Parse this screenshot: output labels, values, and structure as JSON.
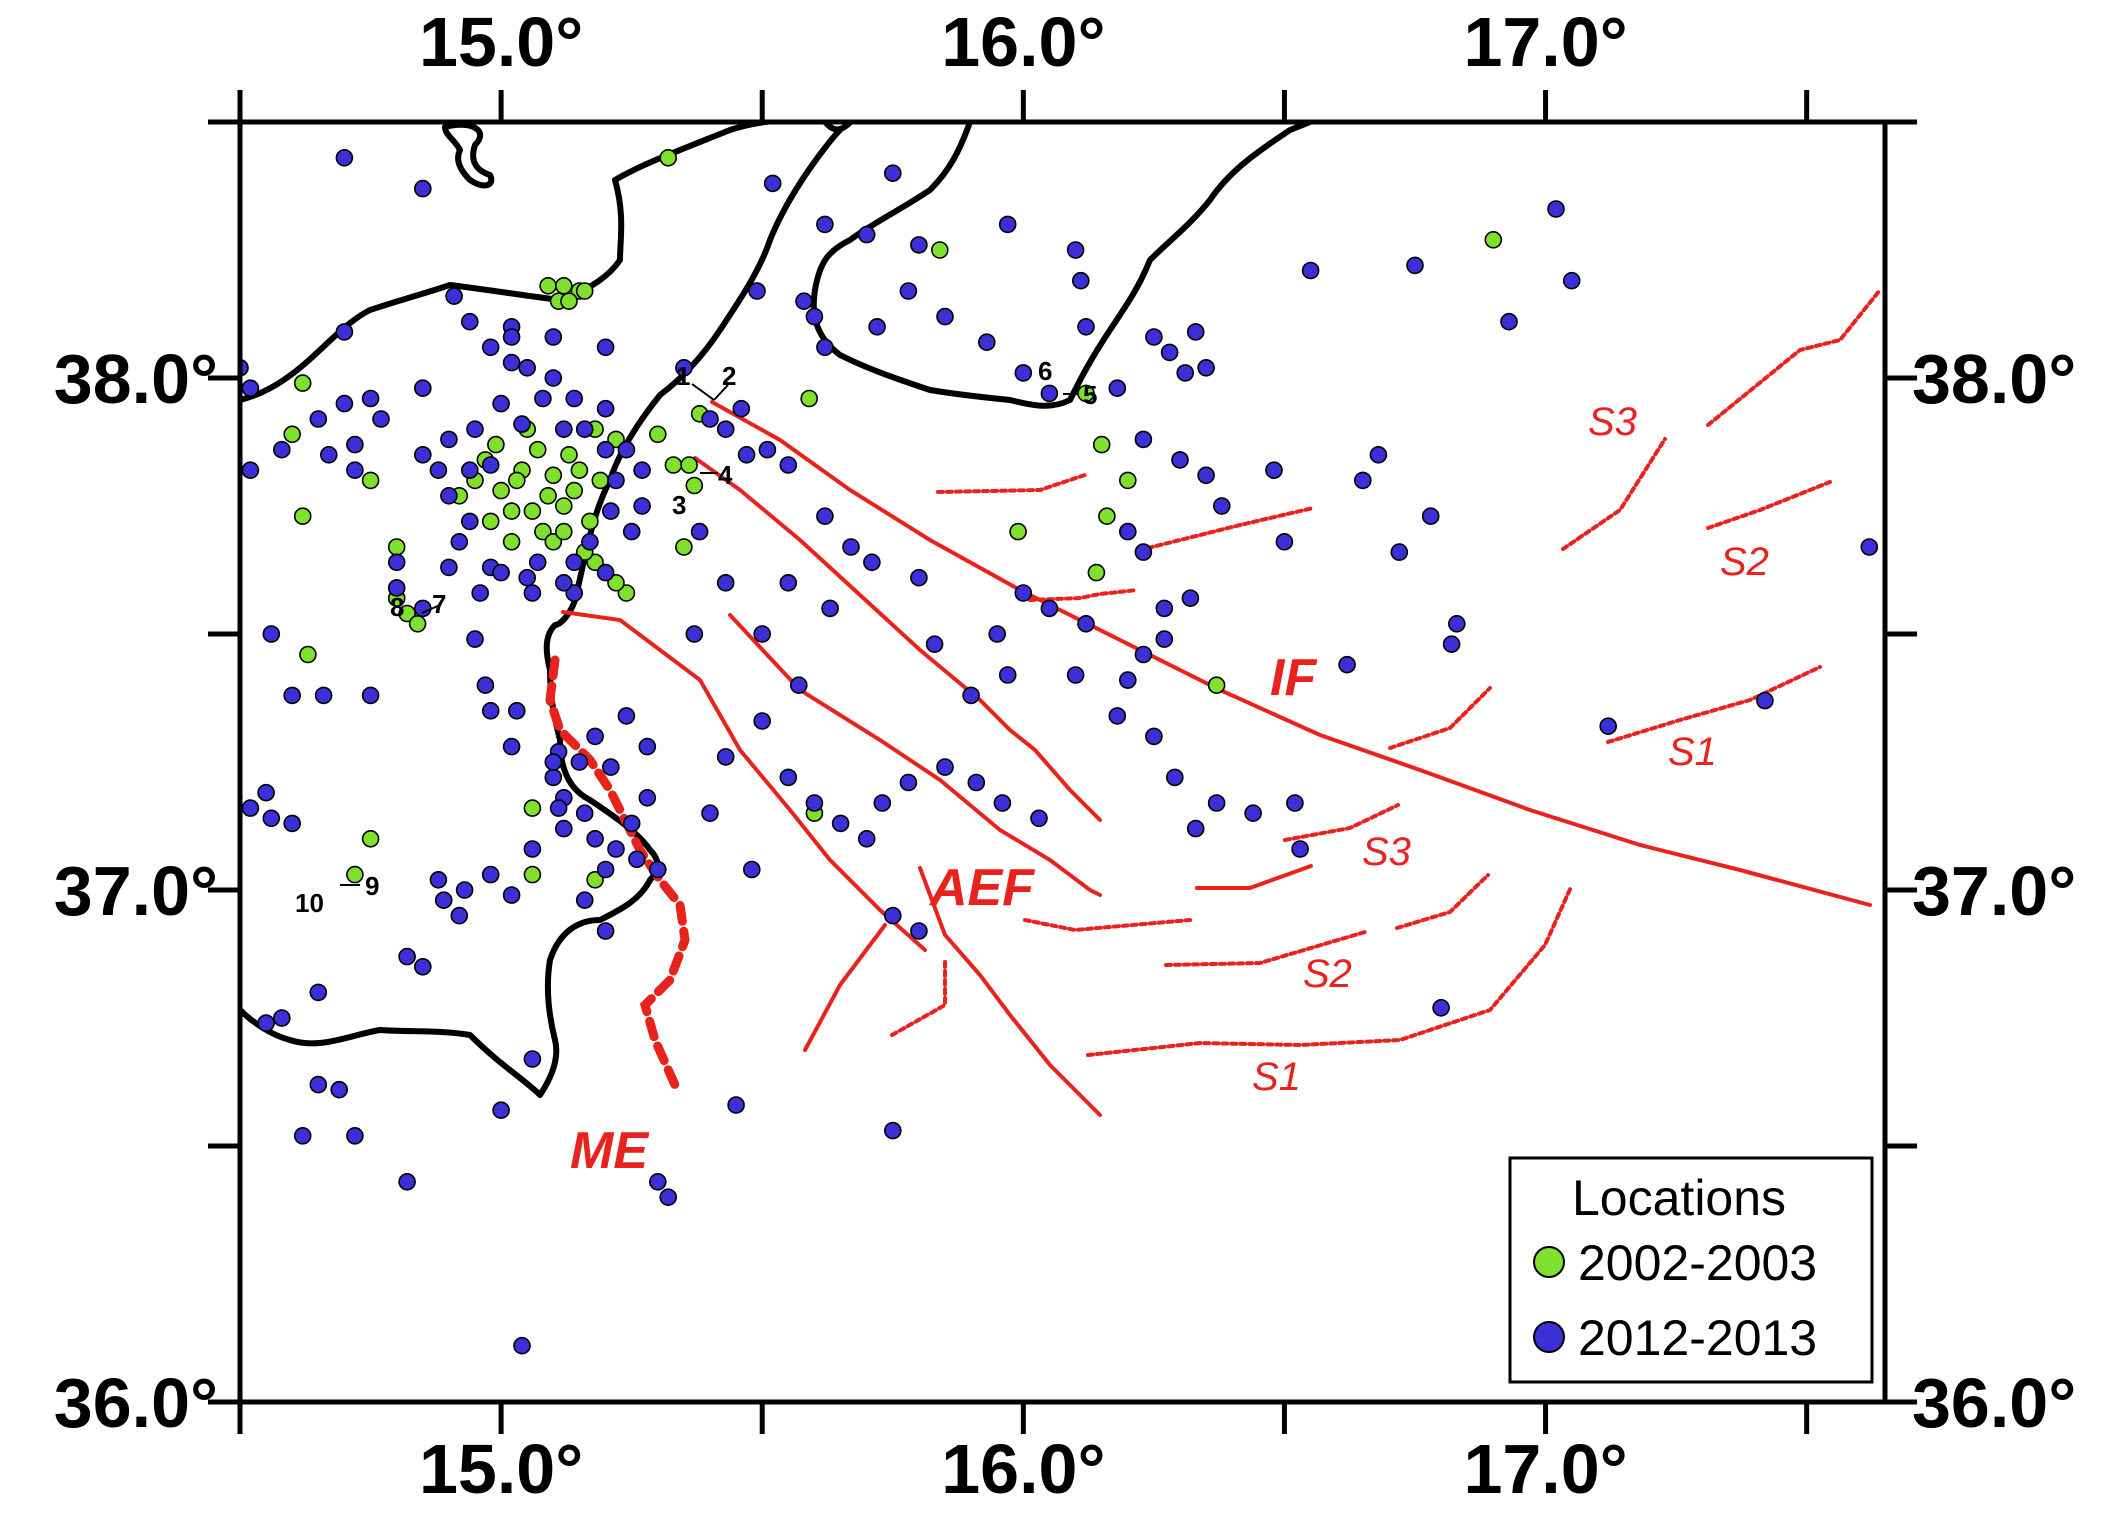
{
  "map": {
    "lon_range": [
      14.5,
      17.65
    ],
    "lat_range": [
      36.0,
      38.5
    ],
    "x_ticks": [
      {
        "value": 15.0,
        "label": "15.0°"
      },
      {
        "value": 16.0,
        "label": "16.0°"
      },
      {
        "value": 17.0,
        "label": "17.0°"
      }
    ],
    "y_ticks": [
      {
        "value": 38.0,
        "label": "38.0°"
      },
      {
        "value": 37.0,
        "label": "37.0°"
      },
      {
        "value": 36.0,
        "label": "36.0°"
      }
    ],
    "minor_x_ticks": [
      14.5,
      15.5,
      16.5,
      17.5
    ],
    "minor_y_ticks": [
      37.5,
      36.5,
      38.5
    ]
  },
  "colors": {
    "green": "#7fe02e",
    "blue": "#3b2fd6",
    "fault": "#e8221d",
    "coast": "#000000"
  },
  "labels": {
    "faults": {
      "IF": "IF",
      "AEF": "AEF",
      "ME": "ME"
    },
    "segments": [
      "S3",
      "S2",
      "S1",
      "S3",
      "S2",
      "S1"
    ],
    "stations": [
      "1",
      "2",
      "3",
      "4",
      "5",
      "6",
      "7",
      "8",
      "9",
      "10"
    ]
  },
  "legend": {
    "title": "Locations",
    "entries": [
      {
        "label": "2002-2003",
        "color": "#7fe02e"
      },
      {
        "label": "2012-2013",
        "color": "#3b2fd6"
      }
    ]
  },
  "events": {
    "green": [
      [
        15.32,
        38.43
      ],
      [
        15.09,
        38.18
      ],
      [
        15.12,
        38.18
      ],
      [
        15.15,
        38.17
      ],
      [
        15.11,
        38.15
      ],
      [
        15.13,
        38.15
      ],
      [
        15.16,
        38.17
      ],
      [
        14.62,
        37.99
      ],
      [
        14.6,
        37.89
      ],
      [
        14.62,
        37.73
      ],
      [
        14.75,
        37.8
      ],
      [
        14.8,
        37.67
      ],
      [
        15.05,
        37.9
      ],
      [
        15.18,
        37.9
      ],
      [
        15.22,
        37.88
      ],
      [
        15.3,
        37.89
      ],
      [
        15.38,
        37.93
      ],
      [
        15.33,
        37.83
      ],
      [
        15.36,
        37.83
      ],
      [
        15.37,
        37.79
      ],
      [
        15.35,
        37.67
      ],
      [
        15.24,
        37.58
      ],
      [
        15.59,
        37.96
      ],
      [
        15.84,
        38.25
      ],
      [
        16.12,
        37.97
      ],
      [
        16.15,
        37.87
      ],
      [
        16.2,
        37.8
      ],
      [
        16.16,
        37.73
      ],
      [
        15.99,
        37.7
      ],
      [
        16.14,
        37.62
      ],
      [
        16.37,
        37.4
      ],
      [
        16.9,
        38.27
      ],
      [
        15.6,
        37.15
      ],
      [
        14.75,
        37.1
      ],
      [
        14.82,
        37.54
      ],
      [
        14.84,
        37.52
      ],
      [
        14.72,
        37.03
      ],
      [
        14.63,
        37.46
      ],
      [
        14.8,
        37.57
      ],
      [
        15.06,
        37.16
      ],
      [
        15.06,
        37.03
      ],
      [
        15.18,
        37.02
      ],
      [
        15.22,
        37.6
      ],
      [
        15.18,
        37.64
      ],
      [
        14.92,
        37.77
      ],
      [
        14.98,
        37.72
      ],
      [
        15.02,
        37.68
      ],
      [
        15.08,
        37.7
      ],
      [
        15.12,
        37.75
      ],
      [
        15.15,
        37.82
      ],
      [
        15.04,
        37.82
      ],
      [
        14.97,
        37.84
      ],
      [
        15.0,
        37.78
      ],
      [
        15.06,
        37.74
      ],
      [
        15.1,
        37.81
      ],
      [
        15.14,
        37.78
      ],
      [
        15.17,
        37.72
      ],
      [
        15.19,
        37.8
      ],
      [
        15.13,
        37.85
      ],
      [
        15.07,
        37.86
      ],
      [
        15.02,
        37.74
      ],
      [
        14.95,
        37.8
      ],
      [
        15.1,
        37.68
      ],
      [
        15.16,
        37.66
      ],
      [
        14.99,
        37.87
      ],
      [
        15.09,
        37.77
      ],
      [
        15.03,
        37.8
      ],
      [
        15.12,
        37.7
      ]
    ],
    "blue": [
      [
        14.7,
        38.43
      ],
      [
        14.85,
        38.37
      ],
      [
        15.52,
        38.38
      ],
      [
        15.75,
        38.4
      ],
      [
        15.97,
        38.3
      ],
      [
        15.62,
        38.3
      ],
      [
        15.7,
        38.28
      ],
      [
        15.8,
        38.26
      ],
      [
        16.1,
        38.25
      ],
      [
        16.11,
        38.19
      ],
      [
        16.55,
        38.21
      ],
      [
        16.75,
        38.22
      ],
      [
        16.93,
        38.11
      ],
      [
        17.02,
        38.33
      ],
      [
        17.05,
        38.19
      ],
      [
        14.5,
        38.02
      ],
      [
        14.52,
        37.98
      ],
      [
        14.58,
        37.86
      ],
      [
        14.65,
        37.92
      ],
      [
        14.7,
        37.95
      ],
      [
        14.72,
        37.87
      ],
      [
        14.7,
        38.09
      ],
      [
        14.77,
        37.92
      ],
      [
        14.85,
        37.85
      ],
      [
        14.91,
        38.16
      ],
      [
        14.94,
        38.11
      ],
      [
        15.02,
        38.1
      ],
      [
        15.1,
        38.08
      ],
      [
        15.2,
        38.06
      ],
      [
        15.35,
        38.02
      ],
      [
        15.49,
        38.17
      ],
      [
        15.58,
        38.15
      ],
      [
        15.6,
        38.12
      ],
      [
        15.62,
        38.06
      ],
      [
        15.72,
        38.1
      ],
      [
        15.78,
        38.17
      ],
      [
        15.85,
        38.12
      ],
      [
        15.93,
        38.07
      ],
      [
        16.0,
        38.01
      ],
      [
        16.05,
        37.97
      ],
      [
        16.12,
        38.1
      ],
      [
        16.25,
        38.08
      ],
      [
        16.28,
        38.05
      ],
      [
        16.31,
        38.01
      ],
      [
        16.33,
        38.09
      ],
      [
        16.35,
        38.02
      ],
      [
        16.18,
        37.98
      ],
      [
        16.23,
        37.88
      ],
      [
        16.3,
        37.84
      ],
      [
        16.35,
        37.81
      ],
      [
        16.38,
        37.75
      ],
      [
        16.48,
        37.82
      ],
      [
        16.65,
        37.8
      ],
      [
        16.68,
        37.85
      ],
      [
        16.5,
        37.68
      ],
      [
        16.72,
        37.66
      ],
      [
        16.78,
        37.73
      ],
      [
        16.83,
        37.52
      ],
      [
        16.62,
        37.44
      ],
      [
        16.82,
        37.48
      ],
      [
        16.27,
        37.55
      ],
      [
        16.27,
        37.49
      ],
      [
        16.23,
        37.46
      ],
      [
        16.2,
        37.41
      ],
      [
        16.18,
        37.34
      ],
      [
        16.25,
        37.3
      ],
      [
        16.29,
        37.22
      ],
      [
        16.37,
        37.17
      ],
      [
        16.44,
        37.15
      ],
      [
        16.52,
        37.17
      ],
      [
        16.33,
        37.12
      ],
      [
        16.53,
        37.08
      ],
      [
        16.8,
        36.77
      ],
      [
        17.12,
        37.32
      ],
      [
        17.42,
        37.37
      ],
      [
        17.62,
        37.67
      ],
      [
        15.4,
        37.92
      ],
      [
        15.43,
        37.9
      ],
      [
        15.46,
        37.94
      ],
      [
        15.51,
        37.86
      ],
      [
        15.55,
        37.83
      ],
      [
        15.62,
        37.73
      ],
      [
        15.67,
        37.67
      ],
      [
        15.71,
        37.64
      ],
      [
        15.8,
        37.61
      ],
      [
        15.83,
        37.48
      ],
      [
        15.9,
        37.38
      ],
      [
        15.97,
        37.42
      ],
      [
        15.95,
        37.5
      ],
      [
        16.0,
        37.58
      ],
      [
        16.05,
        37.55
      ],
      [
        16.12,
        37.52
      ],
      [
        15.57,
        37.4
      ],
      [
        15.5,
        37.33
      ],
      [
        15.55,
        37.22
      ],
      [
        15.6,
        37.17
      ],
      [
        15.65,
        37.13
      ],
      [
        15.7,
        37.1
      ],
      [
        15.73,
        37.17
      ],
      [
        15.78,
        37.21
      ],
      [
        15.85,
        37.24
      ],
      [
        15.91,
        37.21
      ],
      [
        15.96,
        37.17
      ],
      [
        16.03,
        37.14
      ],
      [
        15.75,
        36.95
      ],
      [
        15.8,
        36.92
      ],
      [
        15.43,
        37.26
      ],
      [
        15.4,
        37.15
      ],
      [
        15.48,
        37.04
      ],
      [
        15.45,
        36.58
      ],
      [
        15.75,
        36.53
      ],
      [
        15.3,
        36.43
      ],
      [
        15.32,
        36.4
      ],
      [
        14.82,
        36.43
      ],
      [
        15.04,
        36.11
      ],
      [
        15.02,
        36.99
      ],
      [
        14.92,
        36.95
      ],
      [
        14.82,
        36.87
      ],
      [
        14.65,
        36.8
      ],
      [
        14.58,
        36.75
      ],
      [
        14.55,
        36.74
      ],
      [
        14.65,
        36.62
      ],
      [
        14.69,
        36.61
      ],
      [
        14.72,
        36.52
      ],
      [
        14.62,
        36.52
      ],
      [
        15.0,
        36.57
      ],
      [
        15.06,
        36.67
      ],
      [
        14.55,
        37.19
      ],
      [
        14.52,
        37.16
      ],
      [
        14.56,
        37.14
      ],
      [
        14.6,
        37.13
      ],
      [
        14.6,
        37.38
      ],
      [
        14.66,
        37.38
      ],
      [
        14.75,
        37.38
      ],
      [
        14.56,
        37.5
      ],
      [
        14.85,
        37.55
      ],
      [
        14.8,
        37.59
      ],
      [
        14.8,
        37.64
      ],
      [
        14.92,
        37.68
      ],
      [
        14.95,
        37.49
      ],
      [
        14.97,
        37.4
      ],
      [
        14.98,
        37.35
      ],
      [
        15.02,
        37.28
      ],
      [
        15.11,
        37.27
      ],
      [
        15.15,
        37.25
      ],
      [
        15.1,
        37.22
      ],
      [
        15.12,
        37.18
      ],
      [
        15.16,
        37.15
      ],
      [
        15.12,
        37.12
      ],
      [
        15.18,
        37.1
      ],
      [
        15.22,
        37.08
      ],
      [
        15.25,
        37.13
      ],
      [
        15.28,
        37.18
      ],
      [
        15.26,
        37.06
      ],
      [
        15.3,
        37.04
      ],
      [
        15.2,
        37.04
      ],
      [
        15.16,
        36.98
      ],
      [
        15.2,
        36.92
      ],
      [
        15.1,
        37.25
      ],
      [
        15.18,
        37.3
      ],
      [
        15.24,
        37.34
      ],
      [
        15.28,
        37.28
      ],
      [
        14.88,
        37.02
      ],
      [
        14.93,
        37.0
      ],
      [
        14.98,
        37.03
      ],
      [
        14.89,
        36.98
      ],
      [
        15.06,
        37.08
      ],
      [
        14.85,
        36.85
      ],
      [
        15.21,
        37.24
      ],
      [
        15.11,
        37.16
      ],
      [
        15.03,
        37.35
      ],
      [
        14.96,
        37.58
      ],
      [
        14.9,
        37.63
      ],
      [
        15.2,
        37.62
      ],
      [
        15.14,
        37.58
      ],
      [
        15.05,
        37.61
      ],
      [
        14.98,
        37.63
      ],
      [
        15.25,
        37.7
      ],
      [
        15.27,
        37.75
      ],
      [
        15.27,
        37.82
      ],
      [
        15.24,
        37.86
      ],
      [
        15.2,
        37.94
      ],
      [
        15.14,
        37.96
      ],
      [
        15.08,
        37.96
      ],
      [
        15.0,
        37.95
      ],
      [
        14.95,
        37.9
      ],
      [
        14.9,
        37.88
      ],
      [
        14.88,
        37.82
      ],
      [
        14.9,
        37.77
      ],
      [
        14.94,
        37.72
      ],
      [
        15.0,
        37.62
      ],
      [
        15.06,
        37.58
      ],
      [
        15.12,
        37.6
      ],
      [
        15.17,
        37.68
      ],
      [
        15.21,
        37.74
      ],
      [
        15.22,
        37.8
      ],
      [
        15.2,
        37.86
      ],
      [
        15.12,
        37.9
      ],
      [
        15.04,
        37.91
      ],
      [
        14.98,
        37.83
      ],
      [
        14.94,
        37.82
      ],
      [
        15.07,
        37.64
      ],
      [
        15.14,
        37.64
      ],
      [
        15.16,
        37.9
      ],
      [
        14.75,
        37.96
      ],
      [
        14.85,
        37.98
      ],
      [
        14.67,
        37.85
      ],
      [
        14.72,
        37.82
      ],
      [
        14.52,
        37.82
      ],
      [
        15.02,
        38.08
      ],
      [
        15.05,
        38.02
      ],
      [
        15.1,
        38.0
      ],
      [
        15.02,
        38.03
      ],
      [
        14.98,
        38.06
      ],
      [
        15.47,
        37.85
      ],
      [
        15.38,
        37.7
      ],
      [
        15.43,
        37.6
      ],
      [
        15.37,
        37.5
      ],
      [
        15.55,
        37.6
      ],
      [
        15.63,
        37.55
      ],
      [
        15.5,
        37.5
      ],
      [
        16.1,
        37.42
      ],
      [
        16.23,
        37.66
      ],
      [
        16.2,
        37.7
      ],
      [
        16.32,
        37.57
      ]
    ]
  }
}
